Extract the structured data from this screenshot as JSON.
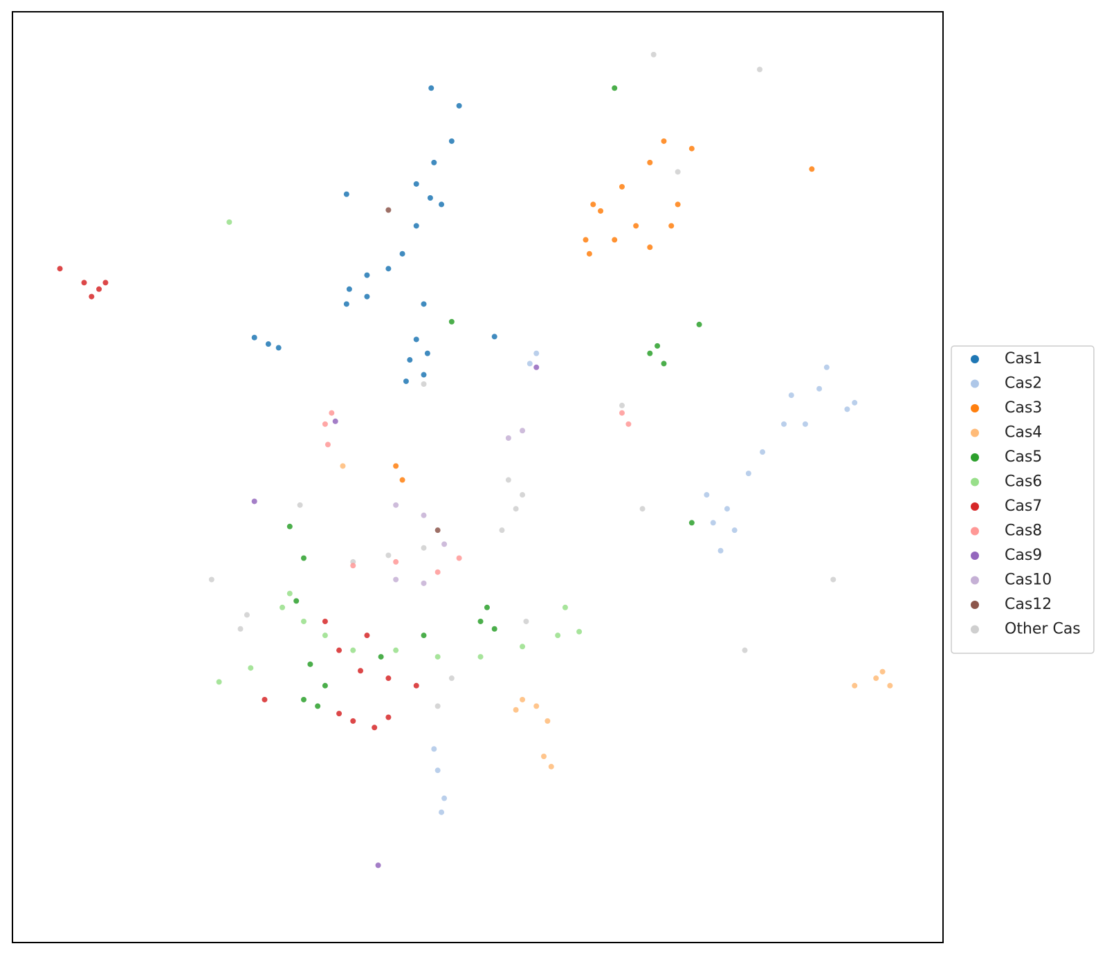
{
  "chart_data": {
    "type": "scatter",
    "xlim": [
      0,
      100
    ],
    "ylim": [
      0,
      100
    ],
    "legend": "right",
    "series": [
      {
        "name": "Cas1",
        "color": "#1f77b4",
        "x": [
          45.0,
          48.0,
          47.2,
          45.3,
          43.4,
          44.9,
          46.1,
          43.4,
          41.9,
          40.4,
          38.1,
          36.2,
          35.9,
          38.1,
          35.9,
          43.4,
          42.7,
          44.2,
          42.3,
          44.6,
          27.5,
          26.0,
          28.6,
          44.2,
          51.8
        ],
        "values": [
          91.8,
          89.9,
          86.1,
          83.8,
          81.5,
          80.0,
          79.3,
          77.0,
          74.0,
          72.4,
          71.7,
          70.2,
          68.6,
          69.4,
          80.4,
          64.8,
          62.6,
          61.0,
          60.3,
          63.3,
          64.3,
          65.0,
          63.9,
          68.6,
          65.1
        ]
      },
      {
        "name": "Cas2",
        "color": "#aec7e8",
        "x": [
          86.7,
          83.7,
          89.7,
          87.5,
          82.9,
          80.6,
          79.1,
          76.8,
          75.3,
          77.6,
          76.1,
          74.6,
          90.5,
          85.2,
          55.6,
          56.3,
          45.7,
          46.4,
          45.3,
          46.1
        ],
        "values": [
          59.5,
          58.8,
          57.3,
          61.8,
          55.7,
          52.7,
          50.4,
          46.6,
          45.1,
          44.3,
          42.1,
          48.1,
          58.0,
          55.7,
          62.2,
          63.3,
          18.5,
          15.5,
          20.8,
          14.0
        ]
      },
      {
        "name": "Cas3",
        "color": "#ff7f0e",
        "x": [
          70.0,
          73.0,
          68.5,
          65.5,
          62.4,
          61.6,
          63.2,
          67.0,
          70.8,
          71.5,
          64.7,
          68.5,
          62.0,
          41.2,
          41.9,
          85.9
        ],
        "values": [
          86.1,
          85.3,
          83.8,
          81.2,
          79.3,
          75.5,
          78.6,
          77.0,
          77.0,
          79.3,
          75.5,
          74.7,
          74.0,
          51.2,
          49.7,
          83.1
        ]
      },
      {
        "name": "Cas4",
        "color": "#ffbb78",
        "x": [
          92.8,
          94.3,
          90.5,
          93.5,
          54.8,
          56.3,
          57.5,
          54.1,
          57.9,
          57.1,
          35.5
        ],
        "values": [
          28.4,
          27.6,
          27.6,
          29.1,
          26.1,
          25.4,
          23.8,
          25.0,
          18.9,
          20.0,
          51.2
        ]
      },
      {
        "name": "Cas5",
        "color": "#2ca02c",
        "x": [
          68.5,
          69.3,
          70.0,
          73.8,
          50.3,
          51.0,
          51.8,
          31.3,
          29.8,
          32.0,
          31.3,
          33.6,
          32.8,
          30.5,
          44.2,
          39.6,
          73.0,
          64.7,
          47.2
        ],
        "values": [
          63.3,
          64.1,
          62.2,
          66.4,
          34.5,
          36.0,
          33.7,
          41.3,
          44.7,
          29.9,
          26.1,
          27.6,
          25.4,
          36.7,
          33.0,
          30.7,
          45.1,
          91.8,
          66.7
        ]
      },
      {
        "name": "Cas6",
        "color": "#98df8a",
        "x": [
          29.0,
          31.3,
          33.6,
          36.6,
          41.2,
          45.7,
          50.3,
          54.8,
          58.6,
          60.9,
          29.8,
          22.2,
          25.6,
          59.4,
          23.3
        ],
        "values": [
          36.0,
          34.5,
          33.0,
          31.4,
          31.4,
          30.7,
          30.7,
          31.8,
          33.0,
          33.4,
          37.5,
          28.0,
          29.5,
          36.0,
          77.4
        ]
      },
      {
        "name": "Cas7",
        "color": "#d62728",
        "x": [
          7.7,
          9.3,
          8.5,
          10.0,
          5.1,
          33.6,
          35.1,
          37.4,
          40.4,
          43.4,
          36.6,
          38.9,
          40.4,
          35.1,
          27.1,
          38.1
        ],
        "values": [
          70.9,
          70.2,
          69.4,
          70.9,
          72.4,
          34.5,
          31.4,
          29.2,
          28.4,
          27.6,
          23.8,
          23.1,
          24.2,
          24.6,
          26.1,
          33.0
        ]
      },
      {
        "name": "Cas8",
        "color": "#ff9896",
        "x": [
          33.6,
          33.9,
          34.3,
          66.2,
          65.5,
          36.6,
          41.2,
          45.7,
          48.0
        ],
        "values": [
          55.7,
          53.5,
          56.9,
          55.7,
          56.9,
          40.5,
          40.9,
          39.8,
          41.3
        ]
      },
      {
        "name": "Cas9",
        "color": "#9467bd",
        "x": [
          26.0,
          34.7,
          39.3,
          56.3
        ],
        "values": [
          47.4,
          56.0,
          8.3,
          61.8
        ]
      },
      {
        "name": "Cas10",
        "color": "#c5b0d5",
        "x": [
          41.2,
          44.2,
          54.8,
          53.3,
          44.2,
          41.2,
          46.4
        ],
        "values": [
          47.0,
          45.9,
          55.0,
          54.2,
          38.6,
          39.0,
          42.8
        ]
      },
      {
        "name": "Cas12",
        "color": "#8c564b",
        "x": [
          45.7,
          40.4
        ],
        "values": [
          44.3,
          78.7
        ]
      },
      {
        "name": "Other Cas",
        "color": "#cfcfcf",
        "x": [
          53.3,
          54.1,
          52.6,
          54.8,
          67.7,
          88.2,
          78.7,
          25.2,
          24.5,
          21.4,
          40.4,
          36.6,
          44.2,
          45.7,
          47.2,
          71.5,
          44.2,
          68.9,
          80.3,
          65.5,
          30.9,
          55.2
        ],
        "values": [
          49.7,
          46.6,
          44.3,
          48.1,
          46.6,
          39.0,
          31.4,
          35.2,
          33.7,
          39.0,
          41.6,
          40.9,
          42.4,
          25.4,
          28.4,
          82.8,
          60.0,
          95.4,
          93.8,
          57.7,
          47.0,
          34.5
        ]
      }
    ]
  }
}
